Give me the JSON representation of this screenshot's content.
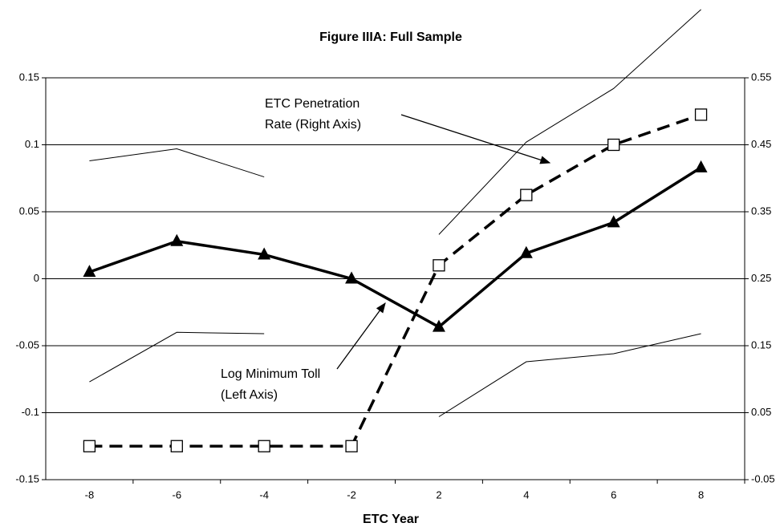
{
  "chart_data": {
    "type": "line",
    "title": "Figure IIIA: Full Sample",
    "x_label": "ETC Year",
    "categories": [
      "-8",
      "-6",
      "-4",
      "-2",
      "2",
      "4",
      "6",
      "8"
    ],
    "ylim": [
      -0.15,
      0.15
    ],
    "yticks": [
      0.15,
      0.1,
      0.05,
      0,
      -0.05,
      -0.1,
      -0.15
    ],
    "y2lim": [
      -0.05,
      0.55
    ],
    "y2ticks": [
      0.55,
      0.45,
      0.35,
      0.25,
      0.15,
      0.05,
      -0.05
    ],
    "grid": true,
    "series": [
      {
        "color": "#000000",
        "style": "thin",
        "marker": "none",
        "values": [
          0.088,
          0.097,
          0.076,
          null,
          0.033,
          0.102,
          0.142,
          0.201
        ]
      },
      {
        "color": "#000000",
        "style": "thin",
        "marker": "none",
        "values": [
          -0.077,
          -0.04,
          -0.041,
          null,
          -0.103,
          -0.062,
          -0.056,
          -0.041
        ]
      },
      {
        "color": "#000000",
        "style": "dashed",
        "marker": "square",
        "axis": "y2",
        "values": [
          0,
          0,
          0,
          0,
          0.27,
          0.375,
          0.45,
          0.495
        ]
      },
      {
        "color": "#000000",
        "style": "thick",
        "marker": "triangle",
        "values": [
          0.005,
          0.028,
          0.018,
          0,
          -0.036,
          0.019,
          0.042,
          0.083
        ]
      }
    ],
    "annotations": [
      {
        "lines": [
          "ETC Penetration",
          "Rate (Right Axis)"
        ]
      },
      {
        "lines": [
          "Log Minimum Toll",
          "(Left Axis)"
        ]
      }
    ]
  }
}
